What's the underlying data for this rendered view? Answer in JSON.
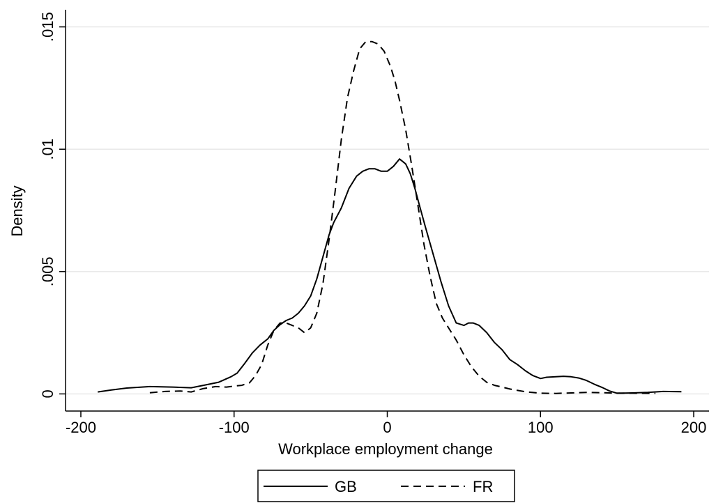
{
  "chart_data": {
    "type": "line",
    "title": "",
    "xlabel": "Workplace employment change",
    "ylabel": "Density",
    "xlim": [
      -210,
      210
    ],
    "ylim": [
      -0.0007,
      0.0157
    ],
    "xticks": [
      -200,
      -100,
      0,
      100,
      200
    ],
    "xtick_labels": [
      "-200",
      "-100",
      "0",
      "100",
      "200"
    ],
    "yticks": [
      0,
      0.005,
      0.01,
      0.015
    ],
    "ytick_labels": [
      "0",
      ".005",
      ".01",
      ".015"
    ],
    "grid": "horizontal",
    "legend": "bottom",
    "series": [
      {
        "name": "GB",
        "style": "solid",
        "color": "#000000",
        "x": [
          -189,
          -180,
          -170,
          -155,
          -140,
          -128,
          -120,
          -110,
          -102,
          -98,
          -93,
          -88,
          -83,
          -78,
          -74,
          -70,
          -66,
          -62,
          -58,
          -54,
          -50,
          -46,
          -42,
          -38,
          -35,
          -30,
          -25,
          -20,
          -16,
          -12,
          -8,
          -4,
          0,
          4,
          8,
          12,
          15,
          18,
          21,
          25,
          30,
          35,
          40,
          45,
          50,
          53,
          56,
          60,
          65,
          70,
          75,
          80,
          85,
          90,
          95,
          100,
          104,
          110,
          115,
          120,
          125,
          130,
          135,
          140,
          145,
          150,
          160,
          170,
          180,
          192
        ],
        "y": [
          8e-05,
          0.00016,
          0.00024,
          0.0003,
          0.00028,
          0.00025,
          0.00035,
          0.00048,
          0.0007,
          0.00085,
          0.00125,
          0.00168,
          0.002,
          0.00225,
          0.0026,
          0.00283,
          0.003,
          0.0031,
          0.0033,
          0.0036,
          0.004,
          0.0047,
          0.0056,
          0.0065,
          0.007,
          0.0076,
          0.0084,
          0.0089,
          0.0091,
          0.0092,
          0.0092,
          0.0091,
          0.0091,
          0.0093,
          0.0096,
          0.0094,
          0.009,
          0.0084,
          0.0077,
          0.0068,
          0.0057,
          0.0046,
          0.0036,
          0.0029,
          0.0028,
          0.0029,
          0.0029,
          0.0028,
          0.0025,
          0.0021,
          0.0018,
          0.0014,
          0.0012,
          0.00095,
          0.00075,
          0.00063,
          0.00068,
          0.0007,
          0.00072,
          0.0007,
          0.00065,
          0.00055,
          0.0004,
          0.00027,
          0.00012,
          3e-05,
          4e-05,
          6e-05,
          0.0001,
          9e-05
        ]
      },
      {
        "name": "FR",
        "style": "dashed",
        "color": "#000000",
        "x": [
          -155,
          -145,
          -135,
          -128,
          -120,
          -112,
          -105,
          -100,
          -95,
          -90,
          -86,
          -82,
          -78,
          -74,
          -70,
          -66,
          -62,
          -58,
          -54,
          -50,
          -46,
          -42,
          -38,
          -34,
          -30,
          -26,
          -22,
          -18,
          -14,
          -10,
          -6,
          -2,
          2,
          5,
          8,
          12,
          16,
          20,
          24,
          28,
          32,
          36,
          40,
          45,
          50,
          55,
          60,
          65,
          70,
          75,
          80,
          90,
          100,
          110,
          120,
          130,
          140,
          150,
          160,
          175
        ],
        "y": [
          5e-05,
          0.0001,
          0.00012,
          8e-05,
          0.00022,
          0.0003,
          0.00028,
          0.00032,
          0.00035,
          0.00045,
          0.00075,
          0.0012,
          0.002,
          0.0026,
          0.0029,
          0.0029,
          0.0028,
          0.0027,
          0.0025,
          0.0027,
          0.0033,
          0.0045,
          0.0063,
          0.0083,
          0.0104,
          0.0121,
          0.0132,
          0.0141,
          0.0144,
          0.0144,
          0.0143,
          0.014,
          0.0134,
          0.0128,
          0.012,
          0.0108,
          0.0093,
          0.0077,
          0.0061,
          0.0048,
          0.0037,
          0.0031,
          0.0027,
          0.0022,
          0.0016,
          0.0011,
          0.00072,
          0.00047,
          0.00035,
          0.00028,
          0.0002,
          9e-05,
          3e-05,
          2e-05,
          4e-05,
          6e-05,
          5e-05,
          3e-05,
          3e-05,
          2e-05
        ]
      }
    ]
  }
}
